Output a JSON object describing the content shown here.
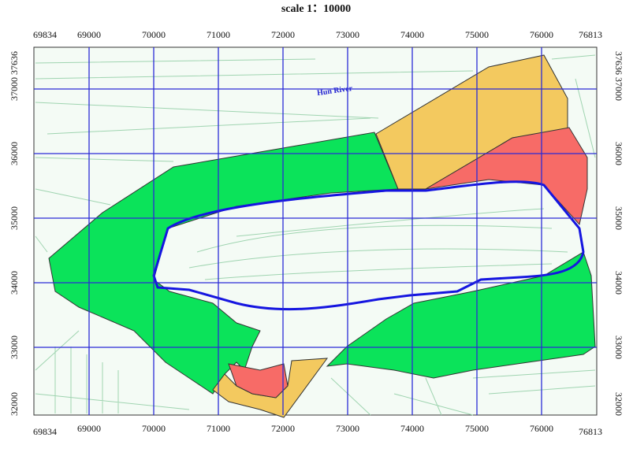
{
  "title": "scale 1：10000",
  "x_corner_labels": [
    69834,
    76813
  ],
  "xticks": [
    69000,
    70000,
    71000,
    72000,
    73000,
    74000,
    75000,
    76000
  ],
  "y_corner_labels": [
    37636,
    32000
  ],
  "yticks": [
    37000,
    36000,
    35000,
    34000,
    33000
  ],
  "river_label": "Hun River"
}
